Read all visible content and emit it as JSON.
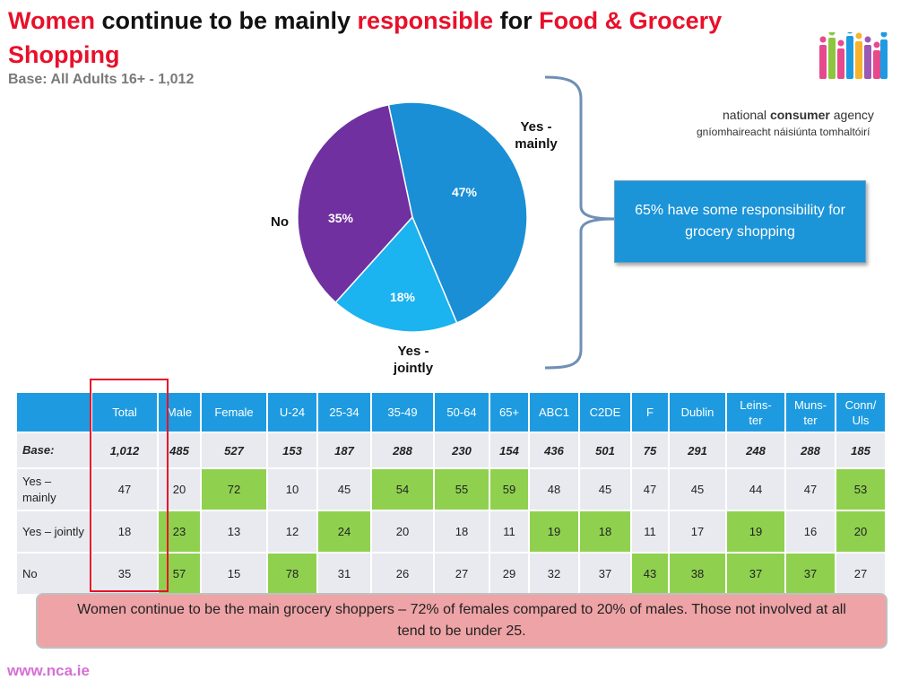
{
  "header": {
    "title_parts": [
      "Women",
      " continue to be mainly ",
      "responsible",
      " for ",
      "Food & Grocery Shopping"
    ],
    "subtitle": "Base: All Adults 16+ - 1,012"
  },
  "logo": {
    "line1_a": "national ",
    "line1_b": "consumer",
    "line1_c": " agency",
    "line2": "gníomhaireacht náisiúnta tomhaltóirí",
    "colors": [
      "#e74a8c",
      "#8cc63f",
      "#e74a8c",
      "#1e9be0",
      "#f7b32b",
      "#9b59b6",
      "#e74a8c",
      "#1e9be0"
    ]
  },
  "chart_data": {
    "type": "pie",
    "slices": [
      {
        "label": "Yes - mainly",
        "value": 47,
        "display": "47%",
        "color": "#1a8fd5"
      },
      {
        "label": "Yes - jointly",
        "value": 18,
        "display": "18%",
        "color": "#1bb3f0"
      },
      {
        "label": "No",
        "value": 35,
        "display": "35%",
        "color": "#7030a0"
      }
    ],
    "ext_labels": {
      "mainly_1": "Yes -",
      "mainly_2": "mainly",
      "jointly_1": "Yes -",
      "jointly_2": "jointly",
      "no": "No"
    }
  },
  "callout": {
    "text": "65% have some responsibility for grocery shopping"
  },
  "table": {
    "headers": [
      "",
      "Total",
      "Male",
      "Female",
      "U-24",
      "25-34",
      "35-49",
      "50-64",
      "65+",
      "ABC1",
      "C2DE",
      "F",
      "Dublin",
      "Leins-\nter",
      "Muns-\nter",
      "Conn/\nUls"
    ],
    "base": [
      "Base:",
      "1,012",
      "485",
      "527",
      "153",
      "187",
      "288",
      "230",
      "154",
      "436",
      "501",
      "75",
      "291",
      "248",
      "288",
      "185"
    ],
    "rows": [
      {
        "label": "Yes –\nmainly",
        "cells": [
          "47",
          "20",
          "72",
          "10",
          "45",
          "54",
          "55",
          "59",
          "48",
          "45",
          "47",
          "45",
          "44",
          "47",
          "53"
        ],
        "highlight": [
          false,
          false,
          true,
          false,
          false,
          true,
          true,
          true,
          false,
          false,
          false,
          false,
          false,
          false,
          true
        ]
      },
      {
        "label": "Yes – jointly",
        "cells": [
          "18",
          "23",
          "13",
          "12",
          "24",
          "20",
          "18",
          "11",
          "19",
          "18",
          "11",
          "17",
          "19",
          "16",
          "20"
        ],
        "highlight": [
          false,
          true,
          false,
          false,
          true,
          false,
          false,
          false,
          true,
          true,
          false,
          false,
          true,
          false,
          true
        ]
      },
      {
        "label": "No",
        "cells": [
          "35",
          "57",
          "15",
          "78",
          "31",
          "26",
          "27",
          "29",
          "32",
          "37",
          "43",
          "38",
          "37",
          "37",
          "27"
        ],
        "highlight": [
          false,
          true,
          false,
          true,
          false,
          false,
          false,
          false,
          false,
          false,
          true,
          true,
          true,
          true,
          false
        ]
      }
    ]
  },
  "footer": {
    "note": "Women continue to be the main grocery shoppers – 72% of females compared to 20% of males. Those not involved at all tend to be under 25.",
    "url": "www.nca.ie"
  }
}
